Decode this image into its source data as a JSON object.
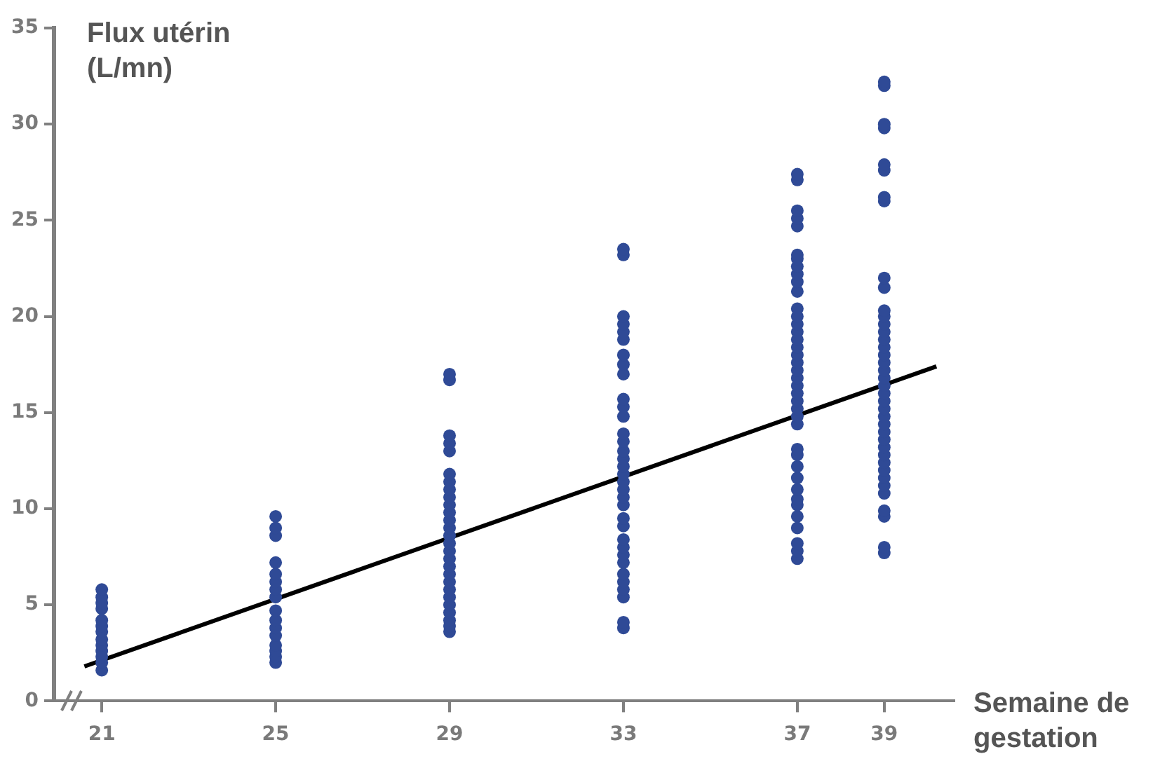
{
  "chart_data": {
    "type": "scatter",
    "xlabel": "Semaine de gestation",
    "ylabel": "Flux utérin (L/mn)",
    "xlim": [
      19.9,
      40.6
    ],
    "xticks": [
      21,
      25,
      29,
      33,
      37,
      39
    ],
    "ylim": [
      0,
      35
    ],
    "yticks": [
      0,
      5,
      10,
      15,
      20,
      25,
      30,
      35
    ],
    "marker": "circle",
    "series": [
      {
        "color": "#2f4a96",
        "x": [
          21,
          21,
          21,
          21,
          21,
          21,
          21,
          21,
          21,
          21,
          21,
          21,
          21,
          25,
          25,
          25,
          25,
          25,
          25,
          25,
          25,
          25,
          25,
          25,
          25,
          25,
          25,
          25,
          25,
          29,
          29,
          29,
          29,
          29,
          29,
          29,
          29,
          29,
          29,
          29,
          29,
          29,
          29,
          29,
          29,
          29,
          29,
          29,
          29,
          29,
          29,
          29,
          29,
          29,
          29,
          29,
          33,
          33,
          33,
          33,
          33,
          33,
          33,
          33,
          33,
          33,
          33,
          33,
          33,
          33,
          33,
          33,
          33,
          33,
          33,
          33,
          33,
          33,
          33,
          33,
          33,
          33,
          33,
          33,
          33,
          33,
          33,
          33,
          33,
          33,
          37,
          37,
          37,
          37,
          37,
          37,
          37,
          37,
          37,
          37,
          37,
          37,
          37,
          37,
          37,
          37,
          37,
          37,
          37,
          37,
          37,
          37,
          37,
          37,
          37,
          37,
          37,
          37,
          37,
          37,
          37,
          37,
          37,
          37,
          37,
          37,
          37,
          37,
          37,
          39,
          39,
          39,
          39,
          39,
          39,
          39,
          39,
          39,
          39,
          39,
          39,
          39,
          39,
          39,
          39,
          39,
          39,
          39,
          39,
          39,
          39,
          39,
          39,
          39,
          39,
          39,
          39,
          39,
          39,
          39,
          39,
          39,
          39,
          39,
          39,
          39,
          39,
          39
        ],
        "values": [
          1.6,
          2.0,
          2.3,
          2.6,
          2.9,
          3.2,
          3.6,
          3.9,
          4.2,
          4.8,
          5.1,
          5.4,
          5.8,
          2.0,
          2.3,
          2.6,
          2.9,
          3.4,
          3.8,
          4.2,
          4.7,
          5.4,
          5.8,
          6.2,
          6.6,
          7.2,
          8.6,
          9.0,
          9.6,
          3.6,
          3.9,
          4.2,
          4.6,
          5.0,
          5.4,
          5.8,
          6.2,
          6.6,
          7.0,
          7.4,
          7.8,
          8.2,
          8.6,
          9.0,
          9.4,
          9.8,
          10.2,
          10.6,
          11.0,
          11.4,
          11.8,
          13.0,
          13.4,
          13.8,
          16.7,
          17.0,
          3.8,
          4.1,
          5.4,
          5.8,
          6.2,
          6.6,
          7.2,
          7.6,
          8.0,
          8.4,
          9.1,
          9.5,
          10.2,
          10.6,
          11.0,
          11.4,
          11.8,
          12.2,
          12.6,
          13.0,
          13.5,
          13.9,
          14.8,
          15.3,
          15.7,
          17.0,
          17.5,
          18.0,
          18.8,
          19.2,
          19.6,
          20.0,
          23.2,
          23.5,
          7.4,
          7.8,
          8.2,
          9.0,
          9.6,
          10.2,
          10.5,
          11.0,
          11.6,
          12.2,
          12.8,
          13.1,
          14.4,
          14.8,
          15.2,
          15.6,
          16.0,
          16.4,
          16.8,
          17.2,
          17.6,
          18.0,
          18.4,
          18.8,
          19.2,
          19.6,
          20.0,
          20.4,
          21.3,
          21.8,
          22.2,
          22.6,
          23.0,
          23.2,
          24.7,
          25.1,
          25.5,
          27.1,
          27.4,
          7.7,
          8.0,
          9.6,
          9.9,
          10.8,
          11.2,
          11.6,
          12.0,
          12.4,
          12.8,
          13.2,
          13.6,
          14.0,
          14.4,
          14.8,
          15.2,
          15.6,
          16.0,
          16.4,
          16.8,
          17.2,
          17.6,
          18.0,
          18.4,
          18.8,
          19.2,
          19.6,
          20.0,
          20.3,
          21.5,
          22.0,
          26.0,
          26.2,
          27.6,
          27.9,
          29.8,
          30.0,
          32.0,
          32.2
        ]
      },
      {
        "type": "line",
        "color": "#000000",
        "marker": "none",
        "x": [
          20.6,
          40.2
        ],
        "values": [
          1.8,
          17.4
        ]
      }
    ]
  }
}
